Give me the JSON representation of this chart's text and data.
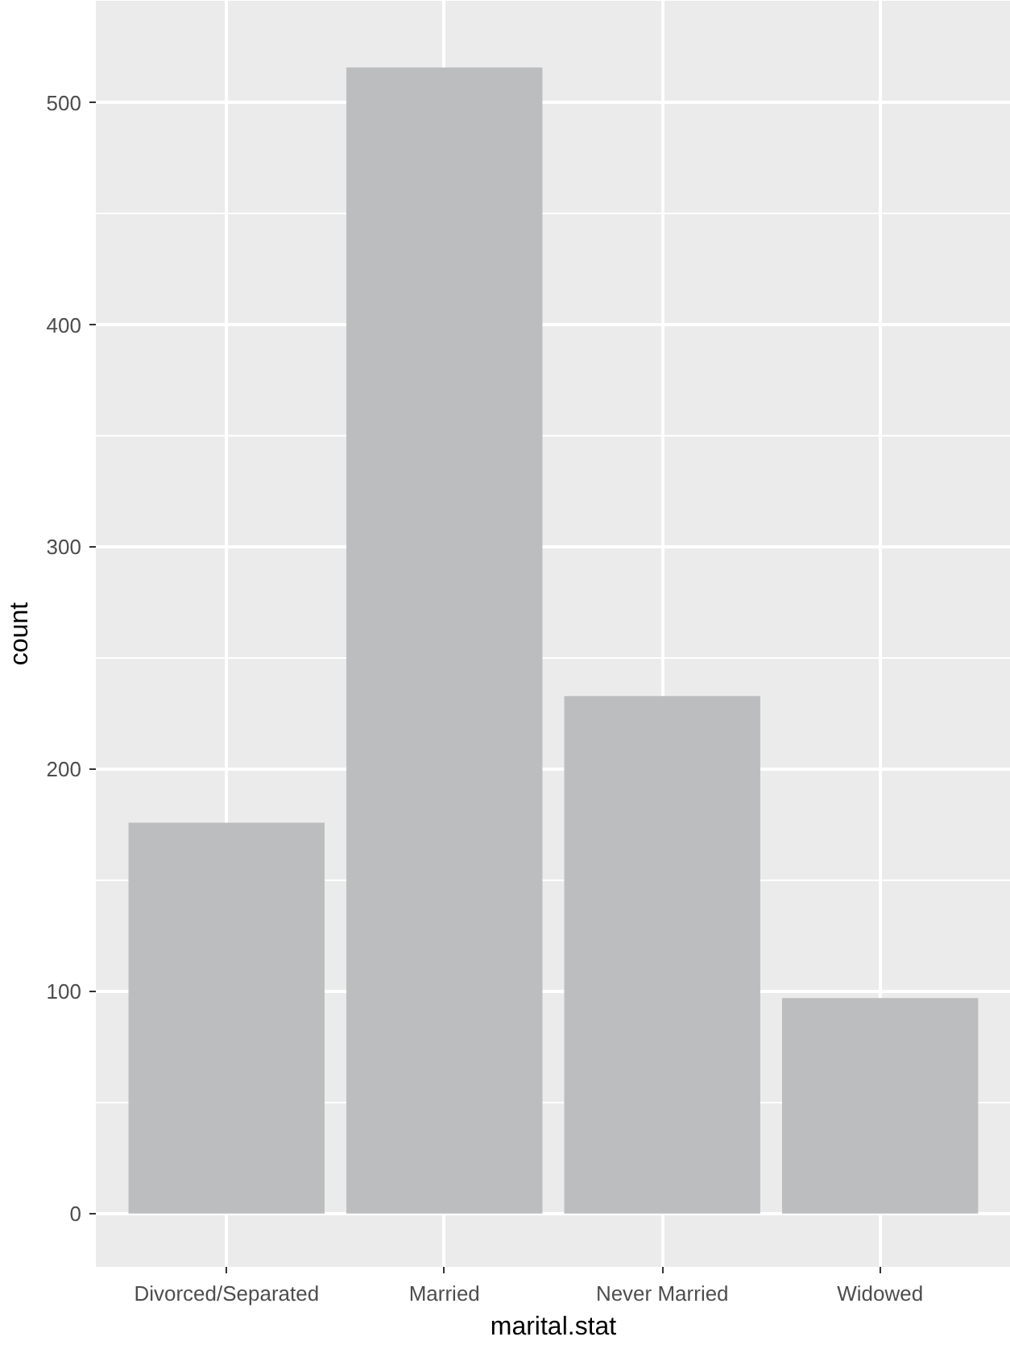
{
  "chart_data": {
    "type": "bar",
    "xlabel": "marital.stat",
    "ylabel": "count",
    "categories": [
      "Divorced/Separated",
      "Married",
      "Never Married",
      "Widowed"
    ],
    "values": [
      176,
      516,
      233,
      97
    ],
    "color": "#bbbdbf",
    "ylim": [
      -24,
      546
    ],
    "yticks": [
      0,
      100,
      200,
      300,
      400,
      500
    ],
    "grid": true
  }
}
